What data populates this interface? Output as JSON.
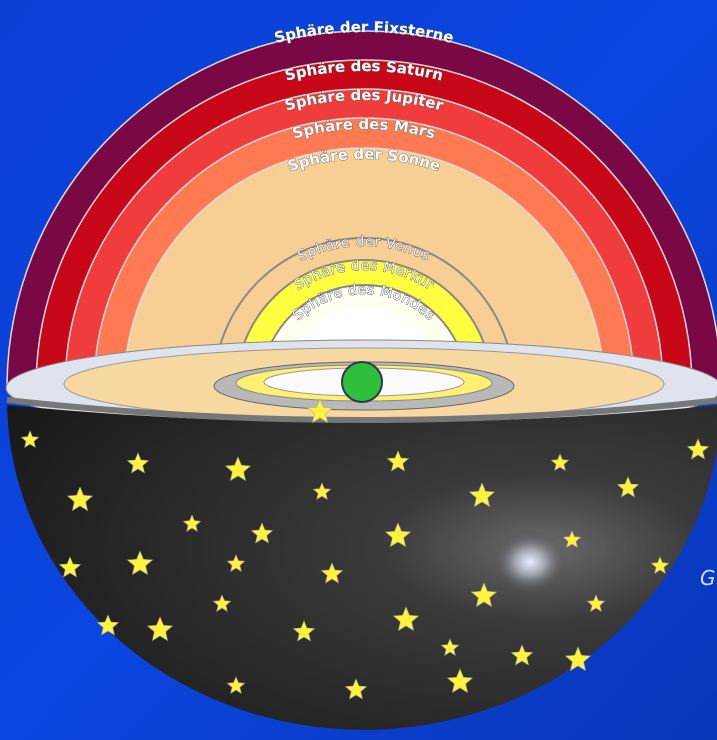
{
  "spheres": {
    "outer": [
      "Sphäre der Fixsterne",
      "Sphäre des Saturn",
      "Sphäre des Jupiter",
      "Sphäre des Mars",
      "Sphäre der Sonne"
    ],
    "inner": [
      "Sphäre der Venus",
      "Sphäre des Merkur",
      "Sphäre des Mondes"
    ]
  },
  "edge_text": "G"
}
